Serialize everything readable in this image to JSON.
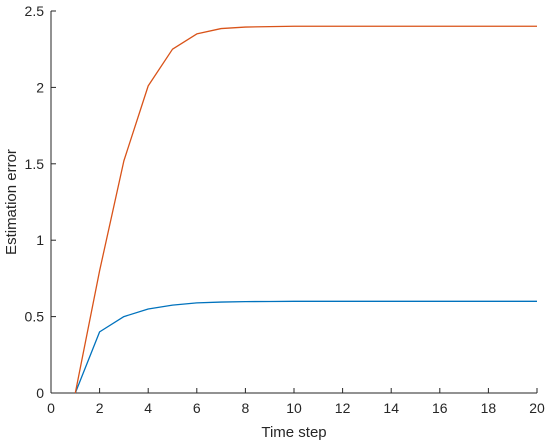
{
  "chart_data": {
    "type": "line",
    "title": "",
    "xlabel": "Time step",
    "ylabel": "Estimation error",
    "xlim": [
      0,
      20
    ],
    "ylim": [
      0,
      2.5
    ],
    "xticks": [
      0,
      2,
      4,
      6,
      8,
      10,
      12,
      14,
      16,
      18,
      20
    ],
    "xtick_labels": [
      "0",
      "2",
      "4",
      "6",
      "8",
      "10",
      "12",
      "14",
      "16",
      "18",
      "20"
    ],
    "yticks": [
      0,
      0.5,
      1,
      1.5,
      2,
      2.5
    ],
    "ytick_labels": [
      "0",
      "0.5",
      "1",
      "1.5",
      "2",
      "2.5"
    ],
    "grid": false,
    "box": false,
    "x": [
      1,
      2,
      3,
      4,
      5,
      6,
      7,
      8,
      9,
      10,
      11,
      12,
      13,
      14,
      15,
      16,
      17,
      18,
      19,
      20
    ],
    "series": [
      {
        "color": "#0072BD",
        "values": [
          0,
          0.4,
          0.5,
          0.55,
          0.575,
          0.59,
          0.595,
          0.598,
          0.599,
          0.6,
          0.6,
          0.6,
          0.6,
          0.6,
          0.6,
          0.6,
          0.6,
          0.6,
          0.6,
          0.6
        ]
      },
      {
        "color": "#D95319",
        "values": [
          0,
          0.8,
          1.52,
          2.01,
          2.25,
          2.35,
          2.385,
          2.395,
          2.398,
          2.4,
          2.4,
          2.4,
          2.4,
          2.4,
          2.4,
          2.4,
          2.4,
          2.4,
          2.4,
          2.4
        ]
      }
    ]
  }
}
